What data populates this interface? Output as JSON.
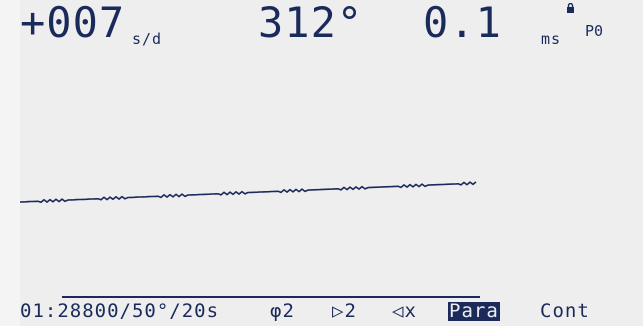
{
  "header": {
    "rate_value": "+007",
    "rate_unit": "s/d",
    "angle_value": "312°",
    "beat_error_value": "0.1",
    "beat_error_unit": "ms",
    "position_code": "P0"
  },
  "status": {
    "config": "01:28800/50°/20s",
    "filter": "φ2",
    "trigger": "▷2",
    "sound": "◁x",
    "mode_selected": "Para",
    "mode_other": "Cont"
  },
  "colors": {
    "lcd_background": "#eeeeee",
    "ink": "#1a2a5a"
  },
  "icons": {
    "beat_error_lock": "lock-icon",
    "filter": "phi-icon",
    "trigger": "play-triangle-icon",
    "sound": "speaker-muted-icon"
  }
}
